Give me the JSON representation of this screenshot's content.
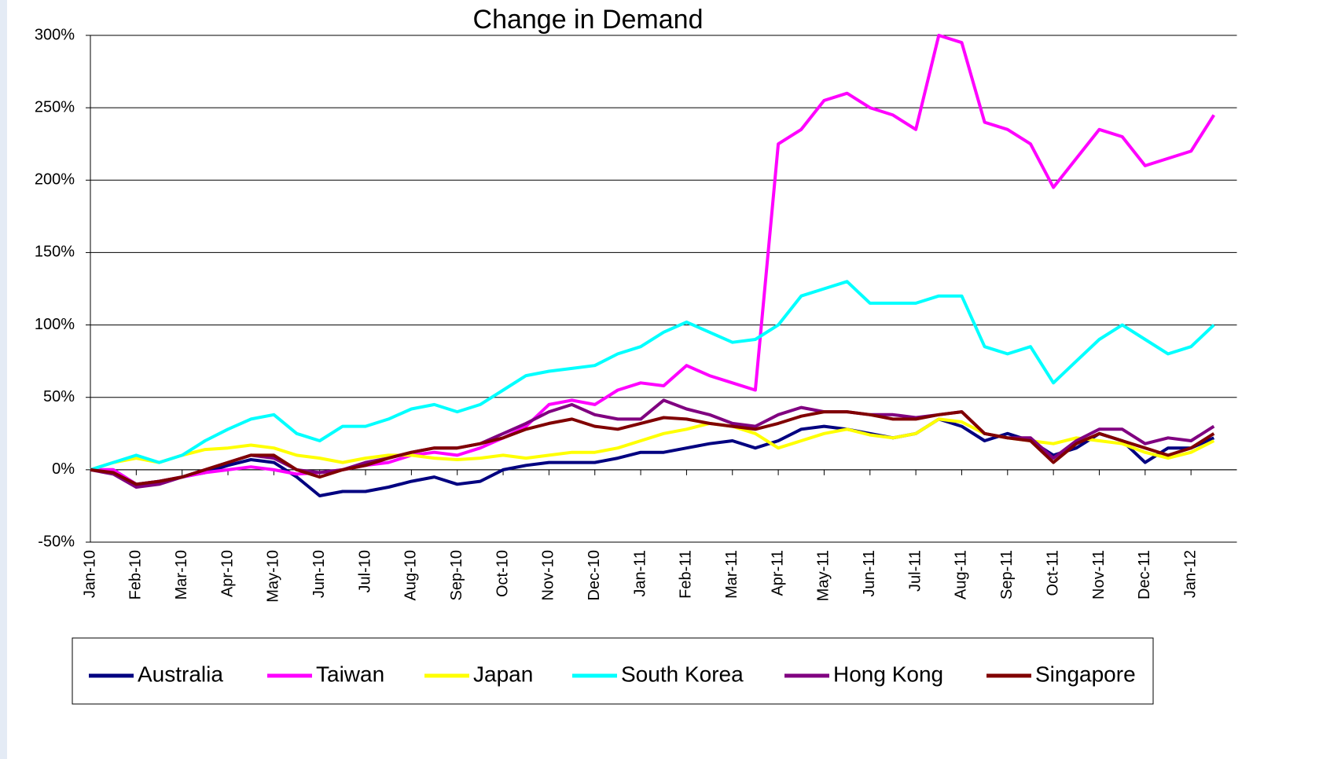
{
  "chart_data": {
    "type": "line",
    "title": "Change in Demand",
    "categories": [
      "Jan-10",
      null,
      "Feb-10",
      null,
      "Mar-10",
      null,
      "Apr-10",
      null,
      "May-10",
      null,
      "Jun-10",
      null,
      "Jul-10",
      null,
      "Aug-10",
      null,
      "Sep-10",
      null,
      "Oct-10",
      null,
      "Nov-10",
      null,
      "Dec-10",
      null,
      "Jan-11",
      null,
      "Feb-11",
      null,
      "Mar-11",
      null,
      "Apr-11",
      null,
      "May-11",
      null,
      "Jun-11",
      null,
      "Jul-11",
      null,
      "Aug-11",
      null,
      "Sep-11",
      null,
      "Oct-11",
      null,
      "Nov-11",
      null,
      "Dec-11",
      null,
      "Jan-12",
      null
    ],
    "series": [
      {
        "name": "Australia",
        "color": "#000080",
        "values": [
          0,
          0,
          -10,
          -8,
          -5,
          -2,
          3,
          7,
          5,
          -5,
          -18,
          -15,
          -15,
          -12,
          -8,
          -5,
          -10,
          -8,
          0,
          3,
          5,
          5,
          5,
          8,
          12,
          12,
          15,
          18,
          20,
          15,
          20,
          28,
          30,
          28,
          25,
          22,
          25,
          35,
          30,
          20,
          25,
          20,
          10,
          15,
          25,
          20,
          5,
          15,
          15,
          22
        ]
      },
      {
        "name": "Taiwan",
        "color": "#ff00ff",
        "values": [
          0,
          0,
          -10,
          -8,
          -5,
          -2,
          0,
          2,
          0,
          -3,
          -2,
          0,
          3,
          5,
          10,
          12,
          10,
          15,
          22,
          30,
          45,
          48,
          45,
          55,
          60,
          58,
          72,
          65,
          60,
          55,
          225,
          235,
          255,
          260,
          250,
          245,
          235,
          300,
          295,
          240,
          235,
          225,
          195,
          215,
          235,
          230,
          210,
          215,
          220,
          245
        ]
      },
      {
        "name": "Japan",
        "color": "#ffff00",
        "values": [
          0,
          5,
          8,
          5,
          10,
          14,
          15,
          17,
          15,
          10,
          8,
          5,
          8,
          10,
          10,
          8,
          7,
          8,
          10,
          8,
          10,
          12,
          12,
          15,
          20,
          25,
          28,
          32,
          30,
          25,
          15,
          20,
          25,
          28,
          24,
          22,
          25,
          35,
          33,
          25,
          22,
          20,
          18,
          22,
          20,
          18,
          12,
          8,
          12,
          20
        ]
      },
      {
        "name": "South Korea",
        "color": "#00ffff",
        "values": [
          0,
          5,
          10,
          5,
          10,
          20,
          28,
          35,
          38,
          25,
          20,
          30,
          30,
          35,
          42,
          45,
          40,
          45,
          55,
          65,
          68,
          70,
          72,
          80,
          85,
          95,
          102,
          95,
          88,
          90,
          100,
          120,
          125,
          130,
          115,
          115,
          115,
          120,
          120,
          85,
          80,
          85,
          60,
          75,
          90,
          100,
          90,
          80,
          85,
          100
        ]
      },
      {
        "name": "Hong Kong",
        "color": "#800080",
        "values": [
          0,
          -3,
          -12,
          -10,
          -5,
          0,
          5,
          10,
          8,
          0,
          -2,
          0,
          5,
          8,
          12,
          15,
          15,
          18,
          25,
          32,
          40,
          45,
          38,
          35,
          35,
          48,
          42,
          38,
          32,
          30,
          38,
          43,
          40,
          40,
          38,
          38,
          36,
          38,
          40,
          25,
          22,
          22,
          8,
          20,
          28,
          28,
          18,
          22,
          20,
          30
        ]
      },
      {
        "name": "Singapore",
        "color": "#800000",
        "values": [
          0,
          -2,
          -10,
          -8,
          -5,
          0,
          5,
          10,
          10,
          0,
          -5,
          0,
          3,
          8,
          12,
          15,
          15,
          18,
          22,
          28,
          32,
          35,
          30,
          28,
          32,
          36,
          35,
          32,
          30,
          28,
          32,
          37,
          40,
          40,
          38,
          35,
          35,
          38,
          40,
          25,
          22,
          20,
          5,
          18,
          25,
          20,
          15,
          10,
          15,
          25
        ]
      }
    ],
    "ylim": [
      -50,
      300
    ],
    "yticks": [
      {
        "value": -50,
        "label": "-50%"
      },
      {
        "value": 0,
        "label": "0%"
      },
      {
        "value": 50,
        "label": "50%"
      },
      {
        "value": 100,
        "label": "100%"
      },
      {
        "value": 150,
        "label": "150%"
      },
      {
        "value": 200,
        "label": "200%"
      },
      {
        "value": 250,
        "label": "250%"
      },
      {
        "value": 300,
        "label": "300%"
      }
    ],
    "grid": true,
    "legend": "bottom"
  }
}
